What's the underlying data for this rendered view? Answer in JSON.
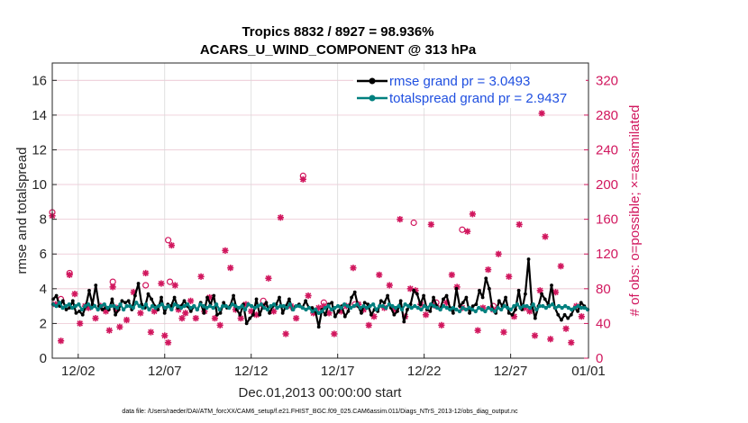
{
  "chart_data": {
    "type": "line",
    "title_line1": "Tropics 8832 / 8927 = 98.936%",
    "title_line2": "ACARS_U_WIND_COMPONENT @ 313 hPa",
    "xlabel": "Dec.01,2013 00:00:00 start",
    "ylabel_left": "rmse and totalspread",
    "ylabel_right": "# of obs: o=possible; ×=assimilated",
    "footer": "data file: /Users/raeder/DAI/ATM_forcXX/CAM6_setup/f.e21.FHIST_BGC.f09_025.CAM6assim.011/Diags_NTrS_2013-12/obs_diag_output.nc",
    "xlim": [
      0.5,
      31.5
    ],
    "ylim_left": [
      0,
      17
    ],
    "ylim_right": [
      0,
      340
    ],
    "x_ticks": [
      2,
      7,
      12,
      17,
      22,
      27,
      32
    ],
    "x_tick_labels": [
      "12/02",
      "12/07",
      "12/12",
      "12/17",
      "12/22",
      "12/27",
      "01/01"
    ],
    "y_ticks_left": [
      0,
      2,
      4,
      6,
      8,
      10,
      12,
      14,
      16
    ],
    "y_ticks_right": [
      0,
      40,
      80,
      120,
      160,
      200,
      240,
      280,
      320
    ],
    "legend": {
      "rmse_label": "rmse grand pr = 3.0493",
      "spread_label": "totalspread grand pr = 2.9437"
    },
    "colors": {
      "rmse": "#000000",
      "spread": "#00807f",
      "obs": "#d1175e",
      "legend_text": "#1f4fe0",
      "grid": "#d9d9d9",
      "title": "#000000"
    },
    "series": [
      {
        "name": "rmse",
        "axis": "left",
        "values": [
          3.4,
          3.6,
          3.0,
          3.3,
          2.8,
          2.9,
          3.3,
          2.6,
          2.7,
          2.5,
          3.0,
          3.9,
          3.1,
          4.2,
          3.0,
          2.8,
          2.9,
          2.8,
          3.4,
          2.5,
          2.8,
          3.3,
          3.2,
          3.3,
          2.8,
          3.6,
          4.3,
          3.1,
          2.9,
          3.7,
          3.4,
          3.0,
          2.8,
          3.5,
          2.6,
          3.1,
          3.0,
          3.5,
          2.9,
          3.0,
          3.3,
          3.0,
          2.7,
          3.0,
          2.8,
          3.2,
          2.6,
          3.5,
          3.1,
          3.6,
          2.5,
          2.6,
          3.2,
          2.9,
          3.0,
          3.6,
          2.8,
          2.5,
          3.1,
          2.0,
          2.3,
          2.5,
          3.4,
          2.5,
          3.0,
          3.2,
          2.6,
          3.0,
          3.1,
          3.5,
          2.6,
          3.0,
          3.4,
          2.8,
          3.0,
          3.1,
          2.9,
          3.3,
          2.9,
          2.9,
          2.7,
          1.8,
          2.8,
          2.5,
          3.1,
          3.2,
          2.4,
          2.7,
          3.0,
          2.4,
          2.7,
          3.5,
          3.8,
          3.0,
          2.6,
          3.2,
          3.1,
          2.5,
          2.8,
          2.7,
          3.3,
          3.2,
          3.6,
          2.9,
          2.5,
          2.7,
          3.3,
          2.1,
          2.8,
          3.1,
          3.9,
          3.7,
          3.1,
          3.6,
          2.8,
          2.7,
          3.5,
          3.0,
          2.8,
          3.4,
          3.6,
          2.9,
          2.6,
          4.0,
          3.0,
          3.2,
          3.5,
          2.6,
          3.0,
          3.1,
          3.9,
          3.5,
          4.6,
          4.0,
          2.8,
          2.6,
          3.3,
          3.0,
          3.5,
          2.6,
          2.5,
          2.8,
          3.9,
          2.8,
          3.7,
          5.7,
          3.1,
          2.3,
          3.0,
          3.7,
          3.4,
          3.1,
          4.2,
          2.9,
          2.5,
          2.2,
          2.5,
          2.3,
          2.5,
          2.9,
          2.7,
          3.2,
          3.0,
          2.8
        ]
      },
      {
        "name": "totalspread",
        "axis": "left",
        "values": [
          3.1,
          3.0,
          3.2,
          2.9,
          3.0,
          3.1,
          2.9,
          3.0,
          3.1,
          2.8,
          3.0,
          3.1,
          2.9,
          3.0,
          2.8,
          3.0,
          3.1,
          2.9,
          3.0,
          3.0,
          2.9,
          3.1,
          2.8,
          3.0,
          3.0,
          2.9,
          3.2,
          3.0,
          2.9,
          3.1,
          2.8,
          3.0,
          2.9,
          3.0,
          3.1,
          2.9,
          3.0,
          2.8,
          3.1,
          3.0,
          2.9,
          3.0,
          3.1,
          2.9,
          3.0,
          2.8,
          3.1,
          3.0,
          2.9,
          3.0,
          2.9,
          3.1,
          2.8,
          3.0,
          3.0,
          2.9,
          3.1,
          3.0,
          2.9,
          3.0,
          2.8,
          3.1,
          3.0,
          2.9,
          3.0,
          3.1,
          2.9,
          2.8,
          3.0,
          3.1,
          2.9,
          3.0,
          3.0,
          2.9,
          3.1,
          2.8,
          3.0,
          3.0,
          2.9,
          2.8,
          2.9,
          2.7,
          2.8,
          2.6,
          2.7,
          2.9,
          3.0,
          2.8,
          2.9,
          3.0,
          2.9,
          3.1,
          3.0,
          2.9,
          3.0,
          3.1,
          2.9,
          3.0,
          2.9,
          3.0,
          3.1,
          2.8,
          3.0,
          3.0,
          2.9,
          3.1,
          3.0,
          2.9,
          3.0,
          2.8,
          3.1,
          3.0,
          2.9,
          3.0,
          2.9,
          2.8,
          3.0,
          2.9,
          3.1,
          3.0,
          2.9,
          2.8,
          3.0,
          2.9,
          2.8,
          2.9,
          2.8,
          2.7,
          2.9,
          2.8,
          2.9,
          2.8,
          2.7,
          2.9,
          2.8,
          2.7,
          2.9,
          2.8,
          2.7,
          2.9,
          2.8,
          3.0,
          2.9,
          2.8,
          3.0,
          3.1,
          2.9,
          3.0,
          3.0,
          2.9,
          3.1,
          2.8,
          3.0,
          3.0,
          2.9,
          3.0,
          3.1,
          2.9,
          3.0,
          2.9,
          3.0,
          2.9,
          2.8,
          2.9,
          3.0,
          2.9,
          2.9,
          2.8
        ]
      },
      {
        "name": "obs_possible",
        "axis": "right",
        "marker": "circle",
        "points": [
          [
            0.5,
            168
          ],
          [
            1.0,
            68
          ],
          [
            1.5,
            98
          ],
          [
            4.0,
            88
          ],
          [
            4.2,
            58
          ],
          [
            5.9,
            84
          ],
          [
            7.2,
            136
          ],
          [
            7.3,
            88
          ],
          [
            12.7,
            66
          ],
          [
            15.0,
            210
          ],
          [
            16.2,
            64
          ],
          [
            18.0,
            62
          ],
          [
            21.4,
            156
          ],
          [
            22.7,
            64
          ],
          [
            24.2,
            148
          ],
          [
            26.0,
            60
          ]
        ],
        "values": [
          168,
          68,
          98,
          88,
          58,
          84,
          136,
          88,
          66,
          210,
          64,
          62,
          156,
          64,
          148,
          60
        ]
      },
      {
        "name": "obs_assimilated",
        "axis": "right",
        "marker": "star",
        "points": [
          [
            0.5,
            164
          ],
          [
            0.7,
            62
          ],
          [
            1.0,
            20
          ],
          [
            1.5,
            96
          ],
          [
            1.8,
            74
          ],
          [
            2.1,
            40
          ],
          [
            2.4,
            60
          ],
          [
            2.6,
            58
          ],
          [
            3.0,
            46
          ],
          [
            3.3,
            60
          ],
          [
            3.6,
            54
          ],
          [
            3.8,
            32
          ],
          [
            4.0,
            82
          ],
          [
            4.2,
            56
          ],
          [
            4.4,
            36
          ],
          [
            4.8,
            44
          ],
          [
            5.2,
            76
          ],
          [
            5.6,
            52
          ],
          [
            5.9,
            98
          ],
          [
            6.2,
            30
          ],
          [
            6.4,
            54
          ],
          [
            6.8,
            86
          ],
          [
            7.0,
            26
          ],
          [
            7.2,
            18
          ],
          [
            7.4,
            130
          ],
          [
            7.6,
            84
          ],
          [
            7.8,
            56
          ],
          [
            8.0,
            46
          ],
          [
            8.2,
            52
          ],
          [
            8.5,
            66
          ],
          [
            8.8,
            46
          ],
          [
            9.1,
            94
          ],
          [
            9.3,
            54
          ],
          [
            9.6,
            70
          ],
          [
            9.9,
            46
          ],
          [
            10.2,
            38
          ],
          [
            10.5,
            124
          ],
          [
            10.8,
            104
          ],
          [
            11.1,
            56
          ],
          [
            11.4,
            46
          ],
          [
            11.7,
            62
          ],
          [
            12.0,
            54
          ],
          [
            12.3,
            50
          ],
          [
            12.7,
            60
          ],
          [
            13.0,
            92
          ],
          [
            13.3,
            54
          ],
          [
            13.7,
            162
          ],
          [
            14.0,
            28
          ],
          [
            14.3,
            60
          ],
          [
            14.6,
            46
          ],
          [
            15.0,
            206
          ],
          [
            15.3,
            72
          ],
          [
            15.6,
            52
          ],
          [
            15.9,
            58
          ],
          [
            16.2,
            60
          ],
          [
            16.5,
            52
          ],
          [
            16.8,
            28
          ],
          [
            17.2,
            54
          ],
          [
            17.5,
            60
          ],
          [
            17.9,
            104
          ],
          [
            18.2,
            62
          ],
          [
            18.5,
            56
          ],
          [
            18.8,
            38
          ],
          [
            19.1,
            48
          ],
          [
            19.4,
            96
          ],
          [
            19.7,
            58
          ],
          [
            20.0,
            84
          ],
          [
            20.3,
            56
          ],
          [
            20.6,
            160
          ],
          [
            20.9,
            48
          ],
          [
            21.2,
            80
          ],
          [
            21.5,
            78
          ],
          [
            21.8,
            62
          ],
          [
            22.1,
            50
          ],
          [
            22.4,
            154
          ],
          [
            22.7,
            60
          ],
          [
            23.0,
            38
          ],
          [
            23.3,
            64
          ],
          [
            23.6,
            96
          ],
          [
            23.9,
            82
          ],
          [
            24.2,
            58
          ],
          [
            24.5,
            146
          ],
          [
            24.8,
            166
          ],
          [
            25.1,
            32
          ],
          [
            25.4,
            58
          ],
          [
            25.7,
            102
          ],
          [
            26.0,
            56
          ],
          [
            26.3,
            120
          ],
          [
            26.6,
            30
          ],
          [
            26.9,
            94
          ],
          [
            27.2,
            48
          ],
          [
            27.5,
            154
          ],
          [
            27.8,
            58
          ],
          [
            28.1,
            54
          ],
          [
            28.4,
            26
          ],
          [
            28.7,
            78
          ],
          [
            29.0,
            140
          ],
          [
            29.3,
            22
          ],
          [
            29.6,
            76
          ],
          [
            29.9,
            106
          ],
          [
            30.2,
            34
          ],
          [
            30.5,
            18
          ],
          [
            30.8,
            60
          ],
          [
            31.1,
            48
          ],
          [
            28.8,
            282
          ]
        ],
        "values": [
          164,
          62,
          20,
          96,
          74,
          40,
          60,
          58,
          46,
          60,
          54,
          32,
          82,
          56,
          36,
          44,
          76,
          52,
          98,
          30,
          54,
          86,
          26,
          18,
          130,
          84,
          56,
          46,
          52,
          66,
          46,
          94,
          54,
          70,
          46,
          38,
          124,
          104,
          56,
          46,
          62,
          54,
          50,
          60,
          92,
          54,
          162,
          28,
          60,
          46,
          206,
          72,
          52,
          58,
          60,
          52,
          28,
          54,
          60,
          104,
          62,
          56,
          38,
          48,
          96,
          58,
          84,
          56,
          160,
          48,
          80,
          78,
          62,
          50,
          154,
          60,
          38,
          64,
          96,
          82,
          58,
          146,
          166,
          32,
          58,
          102,
          56,
          120,
          30,
          94,
          48,
          154,
          58,
          54,
          26,
          78,
          140,
          22,
          76,
          106,
          34,
          18,
          60,
          48,
          282
        ]
      }
    ]
  }
}
